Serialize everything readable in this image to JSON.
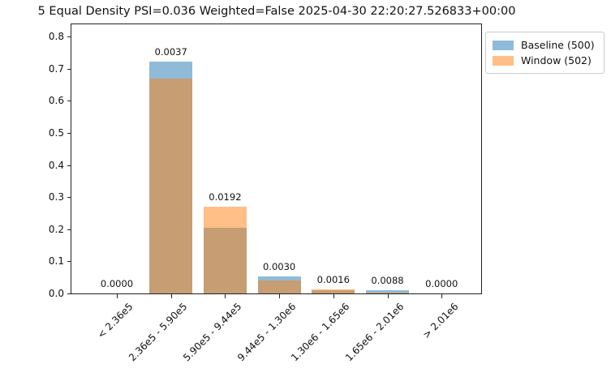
{
  "chart_data": {
    "type": "bar",
    "title": "5 Equal Density PSI=0.036 Weighted=False 2025-04-30 22:20:27.526833+00:00",
    "categories": [
      "< 2.36e5",
      "2.36e5 - 5.90e5",
      "5.90e5 - 9.44e5",
      "9.44e5 - 1.30e6",
      "1.30e6 - 1.65e6",
      "1.65e6 - 2.01e6",
      "> 2.01e6"
    ],
    "series": [
      {
        "name": "Baseline (500)",
        "color": "#1f77b4",
        "alpha": 0.5,
        "values": [
          0.0,
          0.722,
          0.205,
          0.052,
          0.009,
          0.011,
          0.0
        ]
      },
      {
        "name": "Window (502)",
        "color": "#ff7f0e",
        "alpha": 0.5,
        "values": [
          0.0,
          0.669,
          0.27,
          0.041,
          0.012,
          0.003,
          0.0
        ]
      }
    ],
    "bar_labels": [
      "0.0000",
      "0.0037",
      "0.0192",
      "0.0030",
      "0.0016",
      "0.0088",
      "0.0000"
    ],
    "xlabel": "",
    "ylabel": "",
    "ylim": [
      0,
      0.838
    ],
    "ytick_labels": [
      "0.0",
      "0.1",
      "0.2",
      "0.3",
      "0.4",
      "0.5",
      "0.6",
      "0.7",
      "0.8"
    ],
    "xtick_rotation": 45,
    "grid": false,
    "legend_position": "outside upper right"
  }
}
